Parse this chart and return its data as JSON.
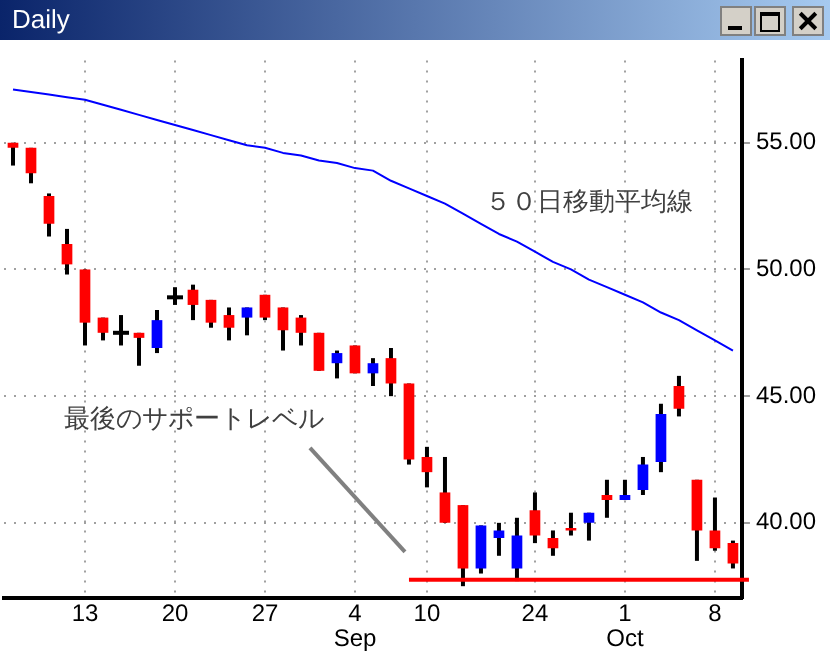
{
  "chart_data": {
    "type": "candlestick",
    "title": "Daily",
    "categories": [
      null,
      null,
      null,
      null,
      "13",
      null,
      null,
      null,
      null,
      "20",
      null,
      null,
      null,
      null,
      "27",
      null,
      null,
      null,
      null,
      "4\nSep",
      null,
      null,
      null,
      "10",
      null,
      null,
      null,
      null,
      null,
      "24",
      null,
      null,
      null,
      null,
      "1\nOct",
      null,
      null,
      null,
      null,
      "8",
      null
    ],
    "ohlc": [
      [
        55.0,
        55.0,
        54.1,
        54.8
      ],
      [
        54.8,
        54.8,
        53.4,
        53.8
      ],
      [
        52.9,
        53.0,
        51.3,
        51.8
      ],
      [
        51.0,
        51.6,
        49.8,
        50.2
      ],
      [
        50.0,
        50.0,
        47.0,
        47.9
      ],
      [
        48.1,
        48.1,
        47.2,
        47.5
      ],
      [
        47.5,
        48.2,
        47.0,
        47.5
      ],
      [
        47.5,
        47.5,
        46.2,
        47.3
      ],
      [
        46.9,
        48.4,
        46.7,
        48.0
      ],
      [
        48.9,
        49.3,
        48.6,
        48.9
      ],
      [
        49.2,
        49.4,
        48.0,
        48.6
      ],
      [
        48.8,
        48.8,
        47.7,
        47.9
      ],
      [
        48.2,
        48.5,
        47.2,
        47.7
      ],
      [
        48.1,
        48.5,
        47.4,
        48.5
      ],
      [
        49.0,
        49.0,
        48.0,
        48.1
      ],
      [
        48.5,
        48.5,
        46.8,
        47.6
      ],
      [
        48.1,
        48.2,
        47.0,
        47.5
      ],
      [
        47.5,
        47.5,
        46.0,
        46.0
      ],
      [
        46.3,
        46.8,
        45.7,
        46.7
      ],
      [
        47.0,
        47.0,
        45.9,
        45.9
      ],
      [
        45.9,
        46.5,
        45.4,
        46.3
      ],
      [
        46.5,
        46.9,
        45.0,
        45.5
      ],
      [
        45.5,
        45.5,
        42.3,
        42.5
      ],
      [
        42.6,
        43.0,
        41.4,
        42.0
      ],
      [
        41.2,
        42.6,
        40.0,
        40.0
      ],
      [
        40.7,
        40.7,
        37.5,
        38.2
      ],
      [
        38.2,
        39.9,
        38.0,
        39.9
      ],
      [
        39.4,
        40.0,
        38.7,
        39.7
      ],
      [
        38.2,
        40.2,
        37.7,
        39.5
      ],
      [
        40.5,
        41.2,
        39.2,
        39.5
      ],
      [
        39.4,
        39.7,
        38.7,
        39.0
      ],
      [
        39.8,
        40.4,
        39.5,
        39.7
      ],
      [
        40.0,
        40.4,
        39.3,
        40.4
      ],
      [
        41.1,
        41.7,
        40.2,
        40.9
      ],
      [
        40.9,
        41.7,
        40.9,
        41.1
      ],
      [
        41.3,
        42.6,
        41.1,
        42.3
      ],
      [
        42.4,
        44.7,
        42.0,
        44.3
      ],
      [
        45.4,
        45.8,
        44.2,
        44.5
      ],
      [
        41.7,
        41.7,
        38.5,
        39.7
      ],
      [
        39.7,
        41.0,
        38.9,
        39.0
      ],
      [
        39.2,
        39.3,
        38.2,
        38.4
      ]
    ],
    "colors": [
      "#ff0000",
      "#ff0000",
      "#ff0000",
      "#ff0000",
      "#ff0000",
      "#ff0000",
      "#000000",
      "#ff0000",
      "#0000ff",
      "#000000",
      "#ff0000",
      "#ff0000",
      "#ff0000",
      "#0000ff",
      "#ff0000",
      "#ff0000",
      "#ff0000",
      "#ff0000",
      "#0000ff",
      "#ff0000",
      "#0000ff",
      "#ff0000",
      "#ff0000",
      "#ff0000",
      "#ff0000",
      "#ff0000",
      "#0000ff",
      "#0000ff",
      "#0000ff",
      "#ff0000",
      "#ff0000",
      "#ff0000",
      "#0000ff",
      "#ff0000",
      "#0000ff",
      "#0000ff",
      "#0000ff",
      "#ff0000",
      "#ff0000",
      "#ff0000",
      "#ff0000"
    ],
    "series": [
      {
        "type": "line",
        "name": "５０日移動平均線",
        "color": "#0000ff",
        "values": [
          57.1,
          57.0,
          56.9,
          56.8,
          56.7,
          56.5,
          56.3,
          56.1,
          55.9,
          55.7,
          55.5,
          55.3,
          55.1,
          54.9,
          54.8,
          54.6,
          54.5,
          54.3,
          54.2,
          54.0,
          53.9,
          53.5,
          53.2,
          52.9,
          52.6,
          52.2,
          51.8,
          51.4,
          51.1,
          50.7,
          50.3,
          50.0,
          49.6,
          49.3,
          49.0,
          48.7,
          48.3,
          48.0,
          47.6,
          47.2,
          46.8
        ]
      }
    ],
    "ylim": [
      37.05,
      58.25
    ],
    "yticks": [
      {
        "value": 40,
        "label": "40.00"
      },
      {
        "value": 45,
        "label": "45.00"
      },
      {
        "value": 50,
        "label": "50.00"
      },
      {
        "value": 55,
        "label": "55.00"
      }
    ],
    "grid": true,
    "ref_lines": [
      {
        "axis": "y",
        "value": 37.75,
        "color": "#ff0000"
      }
    ],
    "annotations": [
      "最後のサポートレベル"
    ]
  }
}
